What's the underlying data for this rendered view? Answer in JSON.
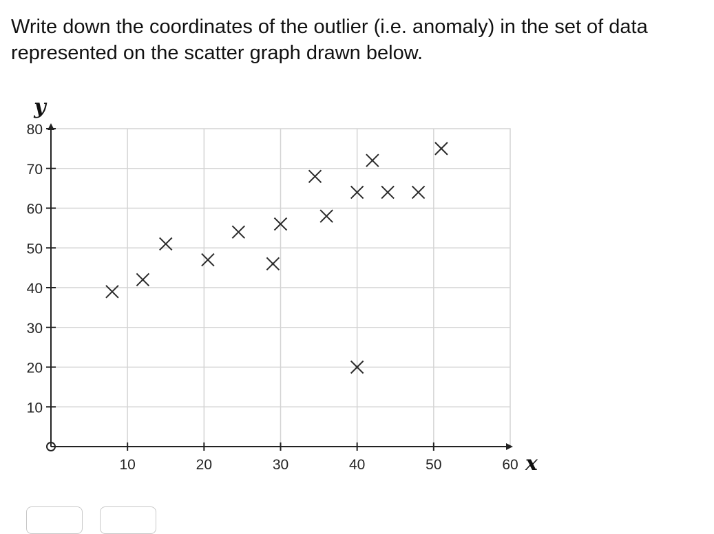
{
  "question": {
    "line1": "Write down the coordinates of the outlier (i.e. anomaly) in the set of data",
    "line2": "represented on the scatter graph drawn below."
  },
  "chart_data": {
    "type": "scatter",
    "xlabel": "x",
    "ylabel": "y",
    "xlim": [
      0,
      60
    ],
    "ylim": [
      0,
      80
    ],
    "x_ticks": [
      10,
      20,
      30,
      40,
      50,
      60
    ],
    "y_ticks": [
      10,
      20,
      30,
      40,
      50,
      60,
      70,
      80
    ],
    "origin_label": "0",
    "grid": true,
    "marker": "x",
    "points": [
      {
        "x": 8,
        "y": 39
      },
      {
        "x": 12,
        "y": 42
      },
      {
        "x": 15,
        "y": 51
      },
      {
        "x": 20.5,
        "y": 47
      },
      {
        "x": 24.5,
        "y": 54
      },
      {
        "x": 29,
        "y": 46
      },
      {
        "x": 30,
        "y": 56
      },
      {
        "x": 34.5,
        "y": 68
      },
      {
        "x": 36,
        "y": 58
      },
      {
        "x": 40,
        "y": 64
      },
      {
        "x": 40,
        "y": 20
      },
      {
        "x": 42,
        "y": 72
      },
      {
        "x": 44,
        "y": 64
      },
      {
        "x": 48,
        "y": 64
      },
      {
        "x": 51,
        "y": 75
      }
    ]
  },
  "answer": {
    "field1": "",
    "field2": ""
  },
  "colors": {
    "grid": "#d4d4d4",
    "axis": "#222222",
    "marker": "#2a2a2a"
  }
}
